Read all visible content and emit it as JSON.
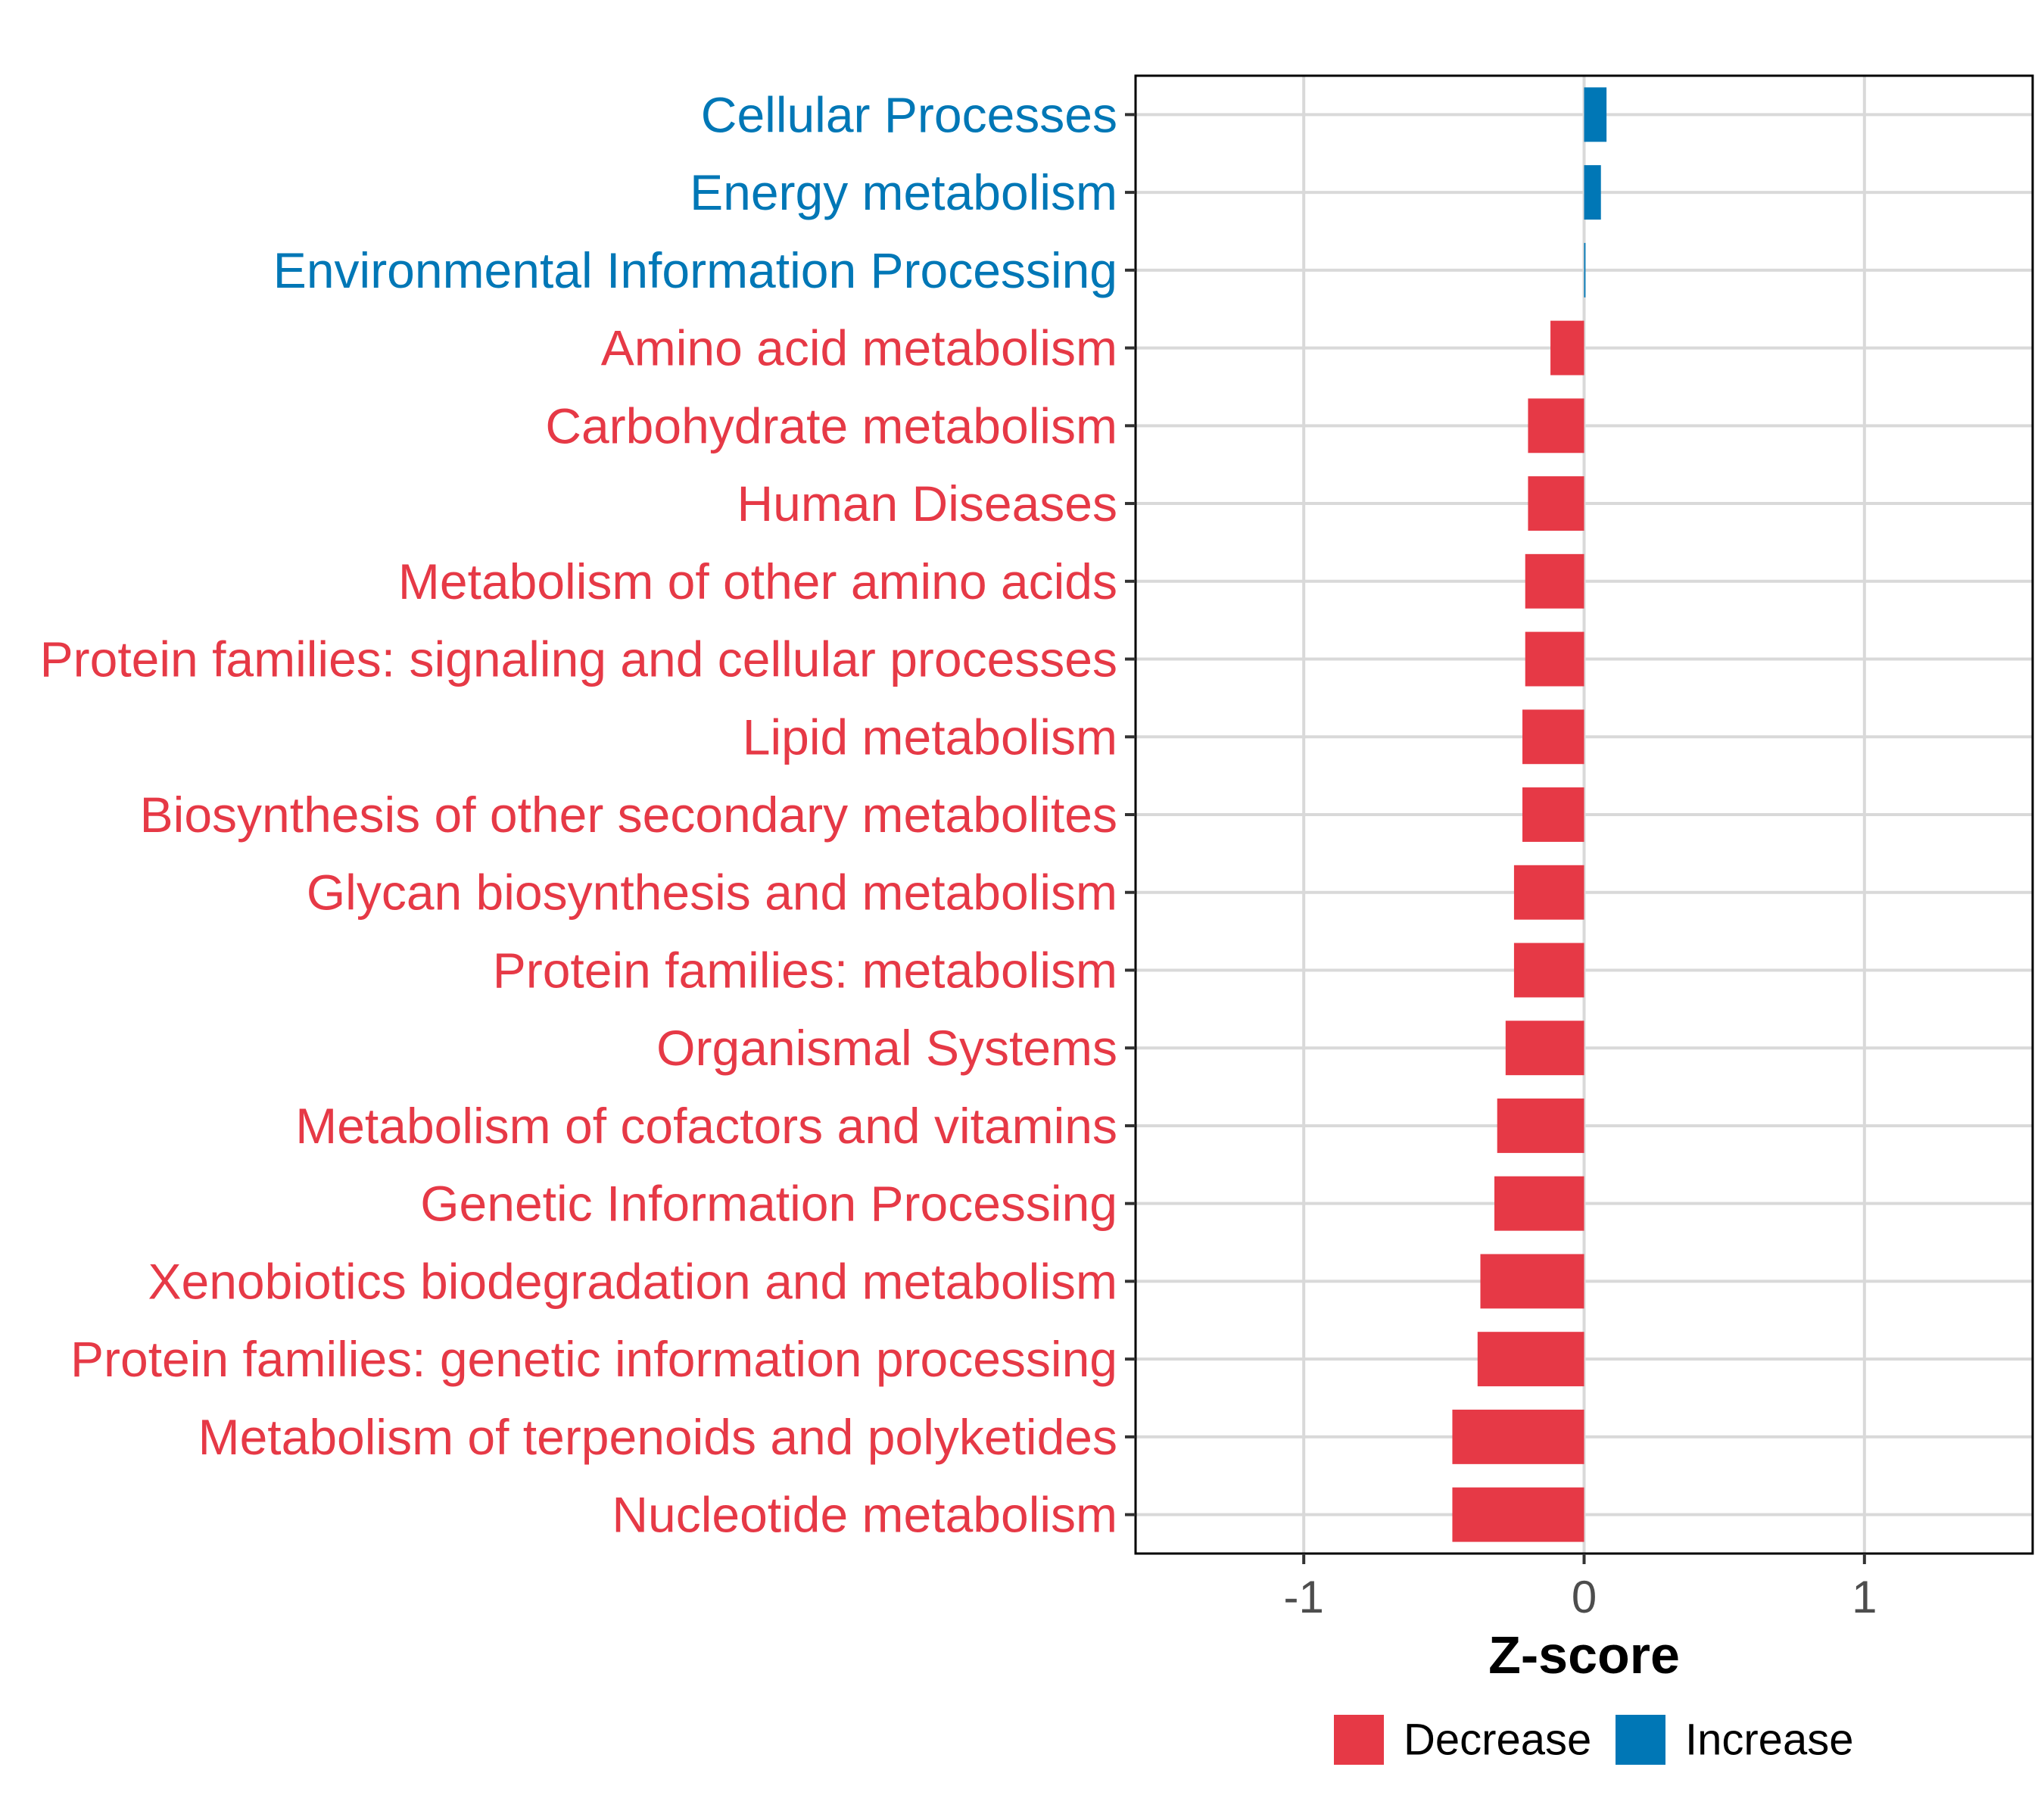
{
  "chart_data": {
    "type": "bar",
    "orientation": "horizontal",
    "title": "",
    "xlabel": "Z-score",
    "ylabel": "",
    "xlim": [
      -1.6,
      1.6
    ],
    "xticks": [
      -1,
      0,
      1
    ],
    "xtick_labels": [
      "-1",
      "0",
      "1"
    ],
    "grid": true,
    "legend_position": "bottom",
    "colors": {
      "Decrease": "#e63946",
      "Increase": "#0077b6"
    },
    "legend": [
      {
        "label": "Decrease",
        "color": "#e63946"
      },
      {
        "label": "Increase",
        "color": "#0077b6"
      }
    ],
    "categories": [
      "Cellular Processes",
      "Energy metabolism",
      "Environmental Information Processing",
      "Amino acid metabolism",
      "Carbohydrate metabolism",
      "Human Diseases",
      "Metabolism of other amino acids",
      "Protein families: signaling and cellular processes",
      "Lipid metabolism",
      "Biosynthesis of other secondary metabolites",
      "Glycan biosynthesis and metabolism",
      "Protein families: metabolism",
      "Organismal Systems",
      "Metabolism of cofactors and vitamins",
      "Genetic Information Processing",
      "Xenobiotics biodegradation and metabolism",
      "Protein families: genetic information processing",
      "Metabolism of terpenoids and polyketides",
      "Nucleotide metabolism"
    ],
    "values": [
      0.08,
      0.06,
      0.005,
      -0.12,
      -0.2,
      -0.2,
      -0.21,
      -0.21,
      -0.22,
      -0.22,
      -0.25,
      -0.25,
      -0.28,
      -0.31,
      -0.32,
      -0.37,
      -0.38,
      -0.47,
      -0.47
    ],
    "direction": [
      "Increase",
      "Increase",
      "Increase",
      "Decrease",
      "Decrease",
      "Decrease",
      "Decrease",
      "Decrease",
      "Decrease",
      "Decrease",
      "Decrease",
      "Decrease",
      "Decrease",
      "Decrease",
      "Decrease",
      "Decrease",
      "Decrease",
      "Decrease",
      "Decrease"
    ]
  }
}
